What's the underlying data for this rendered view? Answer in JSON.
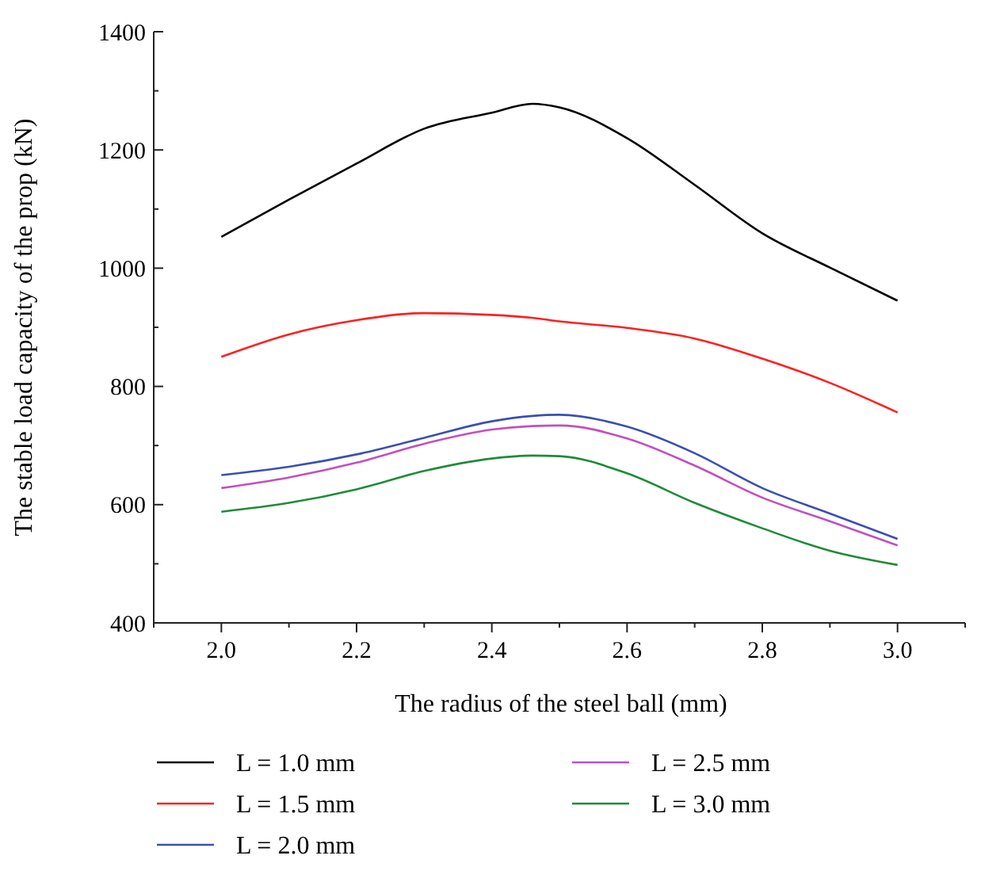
{
  "chart_data": {
    "type": "line",
    "xlabel": "The radius of the steel ball (mm)",
    "ylabel": "The stable load capacity of the prop (kN)",
    "x": [
      2.0,
      2.1,
      2.2,
      2.3,
      2.4,
      2.46,
      2.5,
      2.6,
      2.7,
      2.8,
      2.9,
      3.0
    ],
    "xlim": [
      1.9,
      3.1
    ],
    "ylim": [
      400,
      1400
    ],
    "xticks": [
      {
        "value": 1.9,
        "label": null
      },
      {
        "value": 2.0,
        "label": "2.0"
      },
      {
        "value": 2.1,
        "label": null
      },
      2.2,
      {
        "value": 2.3,
        "label": null
      },
      2.4,
      {
        "value": 2.5,
        "label": null
      },
      2.6,
      {
        "value": 2.7,
        "label": null
      },
      2.8,
      {
        "value": 2.9,
        "label": null
      },
      {
        "value": 3.0,
        "label": "3.0"
      },
      {
        "value": 3.1,
        "label": null
      }
    ],
    "yticks": [
      400,
      {
        "value": 500,
        "label": null
      },
      600,
      {
        "value": 700,
        "label": null
      },
      800,
      {
        "value": 900,
        "label": null
      },
      1000,
      {
        "value": 1100,
        "label": null
      },
      1200,
      {
        "value": 1300,
        "label": null
      },
      1400
    ],
    "grid": false,
    "legend": "bottom",
    "marker": "none",
    "line_style": "solid",
    "series": [
      {
        "name": "L = 1.0 mm",
        "color": "#000000",
        "values": [
          1053,
          1116,
          1177,
          1236,
          1263,
          1278,
          1272,
          1220,
          1141,
          1059,
          1001,
          945
        ]
      },
      {
        "name": "L = 1.5 mm",
        "color": "#ff2020",
        "values": [
          850,
          888,
          912,
          924,
          921,
          916,
          910,
          899,
          881,
          847,
          806,
          756
        ]
      },
      {
        "name": "L = 2.0 mm",
        "color": "#3a50b0",
        "values": [
          650,
          664,
          685,
          713,
          741,
          750,
          752,
          732,
          687,
          628,
          585,
          542
        ]
      },
      {
        "name": "L = 2.5 mm",
        "color": "#c050c0",
        "values": [
          628,
          646,
          671,
          703,
          727,
          733,
          734,
          712,
          666,
          612,
          572,
          531
        ]
      },
      {
        "name": "L = 3.0 mm",
        "color": "#208a3a",
        "values": [
          588,
          603,
          626,
          657,
          678,
          683,
          682,
          653,
          603,
          560,
          522,
          498
        ]
      }
    ]
  }
}
